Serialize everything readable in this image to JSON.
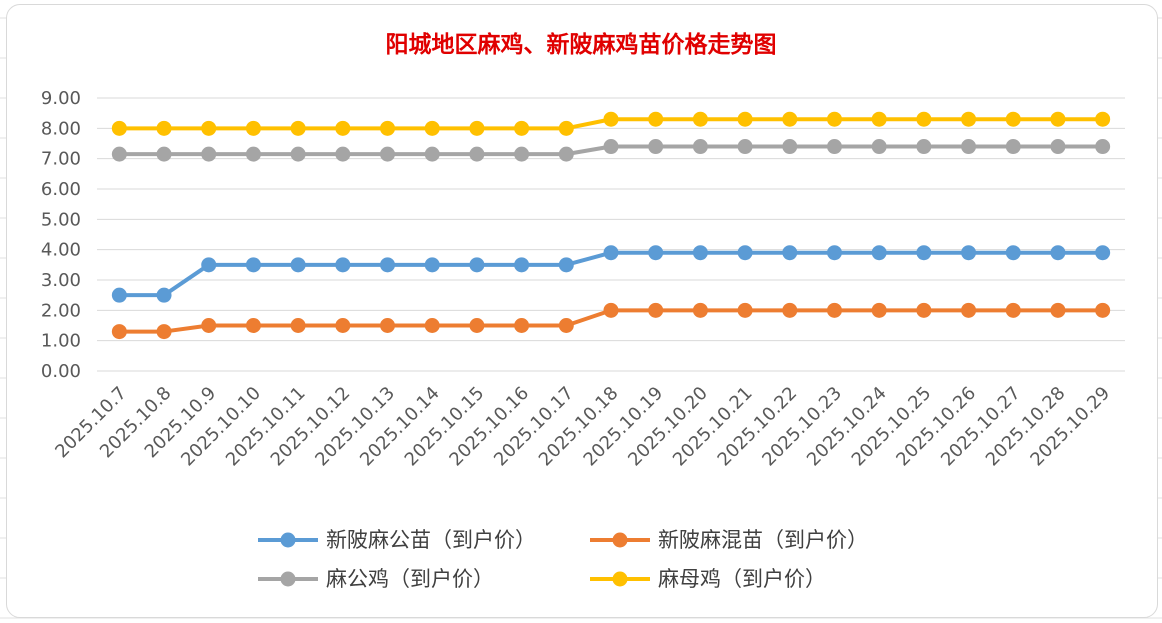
{
  "chart_data": {
    "type": "line",
    "title": "阳城地区麻鸡、新陂麻鸡苗价格走势图",
    "xlabel": "",
    "ylabel": "",
    "ylim": [
      0,
      9
    ],
    "ytick_labels": [
      "0.00",
      "1.00",
      "2.00",
      "3.00",
      "4.00",
      "5.00",
      "6.00",
      "7.00",
      "8.00",
      "9.00"
    ],
    "grid": "horizontal",
    "legend_position": "bottom",
    "categories": [
      "2025.10.7",
      "2025.10.8",
      "2025.10.9",
      "2025.10.10",
      "2025.10.11",
      "2025.10.12",
      "2025.10.13",
      "2025.10.14",
      "2025.10.15",
      "2025.10.16",
      "2025.10.17",
      "2025.10.18",
      "2025.10.19",
      "2025.10.20",
      "2025.10.21",
      "2025.10.22",
      "2025.10.23",
      "2025.10.24",
      "2025.10.25",
      "2025.10.26",
      "2025.10.27",
      "2025.10.28",
      "2025.10.29"
    ],
    "series": [
      {
        "name": "新陂麻公苗（到户价）",
        "color": "#5b9bd5",
        "values": [
          2.5,
          2.5,
          3.5,
          3.5,
          3.5,
          3.5,
          3.5,
          3.5,
          3.5,
          3.5,
          3.5,
          3.9,
          3.9,
          3.9,
          3.9,
          3.9,
          3.9,
          3.9,
          3.9,
          3.9,
          3.9,
          3.9,
          3.9
        ]
      },
      {
        "name": "新陂麻混苗（到户价）",
        "color": "#ed7d31",
        "values": [
          1.3,
          1.3,
          1.5,
          1.5,
          1.5,
          1.5,
          1.5,
          1.5,
          1.5,
          1.5,
          1.5,
          2.0,
          2.0,
          2.0,
          2.0,
          2.0,
          2.0,
          2.0,
          2.0,
          2.0,
          2.0,
          2.0,
          2.0
        ]
      },
      {
        "name": "麻公鸡（到户价）",
        "color": "#a5a5a5",
        "values": [
          7.15,
          7.15,
          7.15,
          7.15,
          7.15,
          7.15,
          7.15,
          7.15,
          7.15,
          7.15,
          7.15,
          7.4,
          7.4,
          7.4,
          7.4,
          7.4,
          7.4,
          7.4,
          7.4,
          7.4,
          7.4,
          7.4,
          7.4
        ]
      },
      {
        "name": "麻母鸡（到户价）",
        "color": "#ffc000",
        "values": [
          8.0,
          8.0,
          8.0,
          8.0,
          8.0,
          8.0,
          8.0,
          8.0,
          8.0,
          8.0,
          8.0,
          8.3,
          8.3,
          8.3,
          8.3,
          8.3,
          8.3,
          8.3,
          8.3,
          8.3,
          8.3,
          8.3,
          8.3
        ]
      }
    ]
  }
}
